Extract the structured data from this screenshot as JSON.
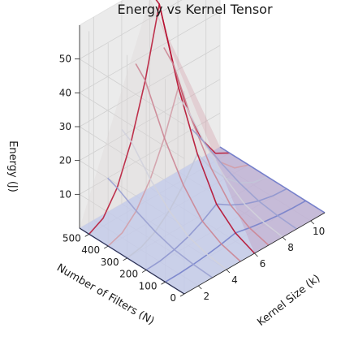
{
  "chart_data": {
    "type": "surface3d",
    "title": "Energy vs Kernel Tensor",
    "xlabel": "Kernel Size (k)",
    "ylabel": "Number of Filters (N)",
    "zlabel": "Energy (J)",
    "x_ticks": [
      2,
      4,
      6,
      8,
      10
    ],
    "y_ticks": [
      0,
      100,
      200,
      300,
      400,
      500
    ],
    "z_ticks": [
      10,
      20,
      30,
      40,
      50
    ],
    "xlim": [
      1,
      11
    ],
    "ylim": [
      0,
      550
    ],
    "zlim": [
      0,
      60
    ],
    "colormap": "coolwarm",
    "grid": true,
    "surface": {
      "x": [
        1,
        11
      ],
      "y": [
        0,
        550
      ],
      "z": [
        [
          0,
          0
        ],
        [
          0,
          0
        ]
      ],
      "color": "#b7c4f2"
    },
    "series": [
      {
        "x": [
          1,
          2,
          3,
          4,
          5,
          6,
          7,
          8,
          9,
          10,
          11
        ],
        "y": [
          100,
          100,
          100,
          100,
          100,
          100,
          100,
          100,
          100,
          100,
          100
        ],
        "z": [
          0,
          0.1,
          0.4,
          0.9,
          1.6,
          2.5,
          1.6,
          0.9,
          0.4,
          0.1,
          0
        ]
      },
      {
        "x": [
          1,
          2,
          3,
          4,
          5,
          6,
          7,
          8,
          9,
          10,
          11
        ],
        "y": [
          200,
          200,
          200,
          200,
          200,
          200,
          200,
          200,
          200,
          200,
          200
        ],
        "z": [
          0,
          0.3,
          1.2,
          2.7,
          4.8,
          7.5,
          4.8,
          2.7,
          1.2,
          0.3,
          0
        ]
      },
      {
        "x": [
          1,
          2,
          3,
          4,
          5,
          6,
          7,
          8,
          9,
          10,
          11
        ],
        "y": [
          300,
          300,
          300,
          300,
          300,
          300,
          300,
          300,
          300,
          300,
          300
        ],
        "z": [
          0,
          0.8,
          3.0,
          6.8,
          12.0,
          18.8,
          12.0,
          6.8,
          3.0,
          0.8,
          0
        ]
      },
      {
        "x": [
          1,
          2,
          3,
          4,
          5,
          6,
          7,
          8,
          9,
          10,
          11
        ],
        "y": [
          400,
          400,
          400,
          400,
          400,
          400,
          400,
          400,
          400,
          400,
          400
        ],
        "z": [
          0,
          1.5,
          5.6,
          12.6,
          22.4,
          35.0,
          22.4,
          12.6,
          5.6,
          1.5,
          0
        ]
      },
      {
        "x": [
          1,
          2,
          3,
          4,
          5,
          6,
          7,
          8,
          9,
          10,
          11
        ],
        "y": [
          500,
          500,
          500,
          500,
          500,
          500,
          500,
          500,
          500,
          500,
          500
        ],
        "z": [
          0,
          2.3,
          8.9,
          20.2,
          35.8,
          56.0,
          35.8,
          20.2,
          8.9,
          2.3,
          0
        ]
      },
      {
        "x": [
          1,
          1,
          1,
          1,
          1,
          1,
          1
        ],
        "y": [
          0,
          100,
          200,
          300,
          400,
          500,
          550
        ],
        "z": [
          0,
          0,
          0,
          0,
          0,
          0,
          0
        ]
      },
      {
        "x": [
          3,
          3,
          3,
          3,
          3,
          3,
          3
        ],
        "y": [
          0,
          100,
          200,
          300,
          400,
          500,
          550
        ],
        "z": [
          0,
          0.4,
          1.2,
          3.0,
          5.6,
          8.9,
          10.0
        ]
      },
      {
        "x": [
          4,
          4,
          4,
          4,
          4,
          4,
          4
        ],
        "y": [
          0,
          100,
          200,
          300,
          400,
          500,
          550
        ],
        "z": [
          0,
          0.9,
          2.7,
          6.8,
          12.6,
          20.2,
          22.0
        ]
      },
      {
        "x": [
          5,
          5,
          5,
          5,
          5,
          5,
          5
        ],
        "y": [
          0,
          100,
          200,
          300,
          400,
          500,
          550
        ],
        "z": [
          0,
          1.6,
          4.8,
          12.0,
          22.4,
          35.8,
          39.0
        ]
      },
      {
        "x": [
          6,
          6,
          6,
          6,
          6,
          6,
          6
        ],
        "y": [
          0,
          100,
          200,
          300,
          400,
          500,
          550
        ],
        "z": [
          0,
          2.5,
          7.5,
          18.8,
          35.0,
          56.0,
          58.0
        ]
      },
      {
        "x": [
          7,
          7,
          7,
          7,
          7,
          7,
          7
        ],
        "y": [
          0,
          100,
          200,
          300,
          400,
          500,
          550
        ],
        "z": [
          0,
          1.6,
          4.8,
          12.0,
          22.4,
          35.8,
          39.0
        ]
      },
      {
        "x": [
          8,
          8,
          8,
          8,
          8,
          8,
          8
        ],
        "y": [
          0,
          100,
          200,
          300,
          400,
          500,
          550
        ],
        "z": [
          0,
          0.9,
          2.7,
          6.8,
          12.6,
          20.2,
          22.0
        ]
      },
      {
        "x": [
          9,
          9,
          9,
          9,
          9,
          9,
          9
        ],
        "y": [
          0,
          100,
          200,
          300,
          400,
          500,
          550
        ],
        "z": [
          0,
          0.4,
          1.2,
          3.0,
          5.6,
          8.9,
          10.0
        ]
      },
      {
        "x": [
          11,
          11,
          11,
          11,
          11,
          11,
          11
        ],
        "y": [
          0,
          100,
          200,
          300,
          400,
          500,
          550
        ],
        "z": [
          0,
          0,
          0,
          0,
          0,
          0,
          0
        ]
      }
    ]
  }
}
